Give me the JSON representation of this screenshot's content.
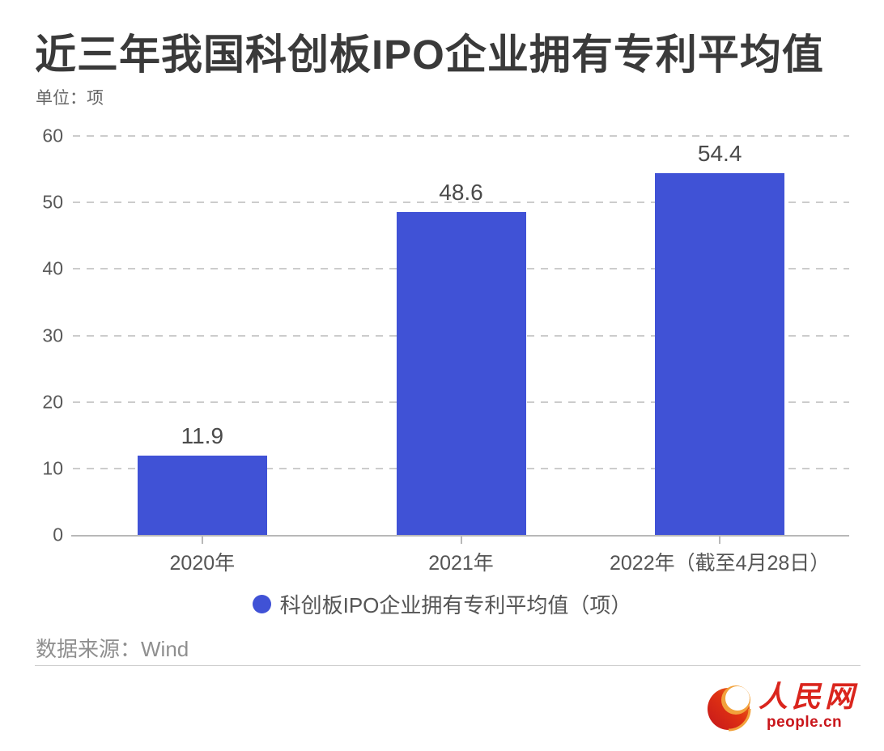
{
  "header": {
    "title": "近三年我国科创板IPO企业拥有专利平均值",
    "unit_label": "单位：项"
  },
  "chart_data": {
    "type": "bar",
    "categories": [
      "2020年",
      "2021年",
      "2022年（截至4月28日）"
    ],
    "values": [
      11.9,
      48.6,
      54.4
    ],
    "value_labels": [
      "11.9",
      "48.6",
      "54.4"
    ],
    "series_name": "科创板IPO企业拥有专利平均值（项）",
    "title": "近三年我国科创板IPO企业拥有专利平均值",
    "unit": "项",
    "xlabel": "",
    "ylabel": "",
    "ylim": [
      0,
      60
    ],
    "yticks": [
      0,
      10,
      20,
      30,
      40,
      50,
      60
    ],
    "grid": "horizontal-dashed",
    "legend_position": "bottom",
    "bar_color": "#4052d6"
  },
  "legend": {
    "label": "科创板IPO企业拥有专利平均值（项）",
    "marker_color": "#4052d6"
  },
  "footer": {
    "source_label": "数据来源：Wind",
    "logo": {
      "cn_text": "人民网",
      "en_text": "people.cn"
    }
  },
  "colors": {
    "bar": "#4052d6",
    "brand_red": "#da251d",
    "title_text": "#3a3a3a",
    "gridline": "#cccccc",
    "axis": "#b8b8b8"
  }
}
